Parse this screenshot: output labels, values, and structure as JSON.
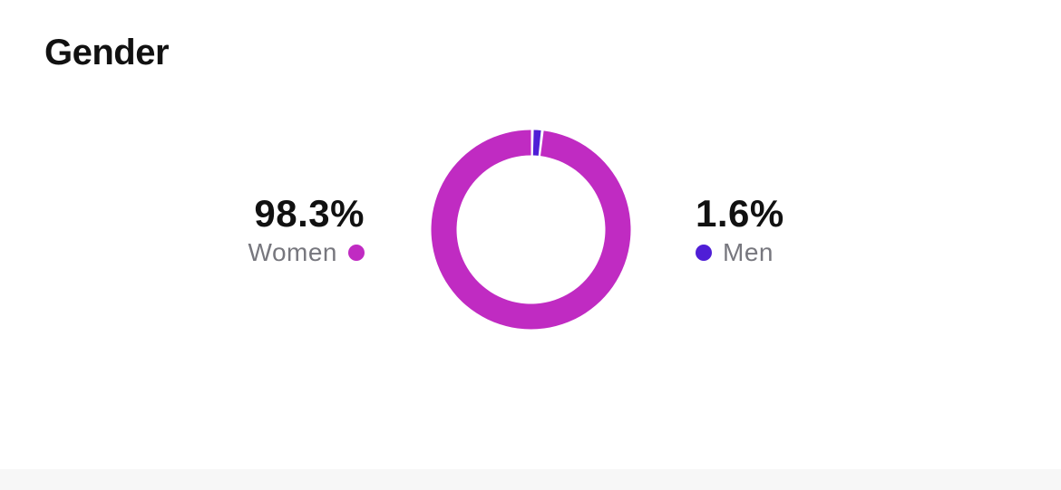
{
  "header": {
    "title": "Gender"
  },
  "chart_data": {
    "type": "pie",
    "donut": true,
    "categories": [
      "Women",
      "Men"
    ],
    "values": [
      98.3,
      1.6
    ],
    "labels": [
      "98.3%",
      "1.6%"
    ],
    "colors": [
      "#c02bc2",
      "#4f1ed6"
    ]
  }
}
